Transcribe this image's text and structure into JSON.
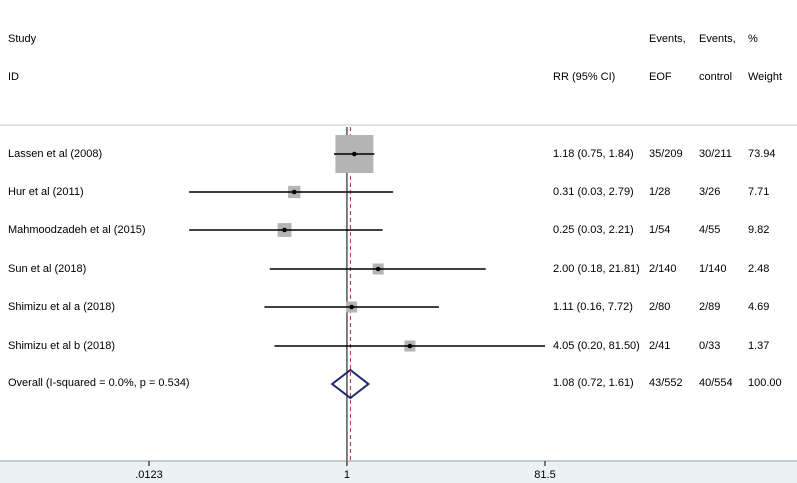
{
  "header": {
    "study_line1": "Study",
    "study_line2": "ID",
    "rr_label": "RR (95% CI)",
    "events_eof_line1": "Events,",
    "events_eof_line2": "EOF",
    "events_control_line1": "Events,",
    "events_control_line2": "control",
    "weight_line1": "%",
    "weight_line2": "Weight"
  },
  "chart_data": {
    "type": "forest",
    "x_scale": "log",
    "x_range": [
      0.0123,
      81.5
    ],
    "x_ticks": [
      ".0123",
      "1",
      "81.5"
    ],
    "reference_line": 1,
    "studies": [
      {
        "label": "Lassen et al (2008)",
        "rr": 1.18,
        "lower": 0.75,
        "upper": 1.84,
        "ci_text": "1.18 (0.75, 1.84)",
        "events_eof": "35/209",
        "events_control": "30/211",
        "weight": "73.94"
      },
      {
        "label": "Hur et al (2011)",
        "rr": 0.31,
        "lower": 0.03,
        "upper": 2.79,
        "ci_text": "0.31 (0.03, 2.79)",
        "events_eof": "1/28",
        "events_control": "3/26",
        "weight": "7.71"
      },
      {
        "label": "Mahmoodzadeh et al (2015)",
        "rr": 0.25,
        "lower": 0.03,
        "upper": 2.21,
        "ci_text": "0.25 (0.03, 2.21)",
        "events_eof": "1/54",
        "events_control": "4/55",
        "weight": "9.82"
      },
      {
        "label": "Sun et al (2018)",
        "rr": 2.0,
        "lower": 0.18,
        "upper": 21.81,
        "ci_text": "2.00 (0.18, 21.81)",
        "events_eof": "2/140",
        "events_control": "1/140",
        "weight": "2.48"
      },
      {
        "label": "Shimizu et al a (2018)",
        "rr": 1.11,
        "lower": 0.16,
        "upper": 7.72,
        "ci_text": "1.11 (0.16, 7.72)",
        "events_eof": "2/80",
        "events_control": "2/89",
        "weight": "4.69"
      },
      {
        "label": "Shimizu et al b (2018)",
        "rr": 4.05,
        "lower": 0.2,
        "upper": 81.5,
        "ci_text": "4.05 (0.20, 81.50)",
        "events_eof": "2/41",
        "events_control": "0/33",
        "weight": "1.37"
      }
    ],
    "overall": {
      "label": "Overall  (I-squared = 0.0%, p = 0.534)",
      "rr": 1.08,
      "lower": 0.72,
      "upper": 1.61,
      "ci_text": "1.08 (0.72, 1.61)",
      "events_eof": "43/552",
      "events_control": "40/554",
      "weight": "100.00"
    },
    "colors": {
      "weight_box": "#b4b4b4",
      "diamond": "#1f2a6e",
      "overall_line": "#b0304a",
      "axis_band": "#eaf2f3"
    }
  }
}
